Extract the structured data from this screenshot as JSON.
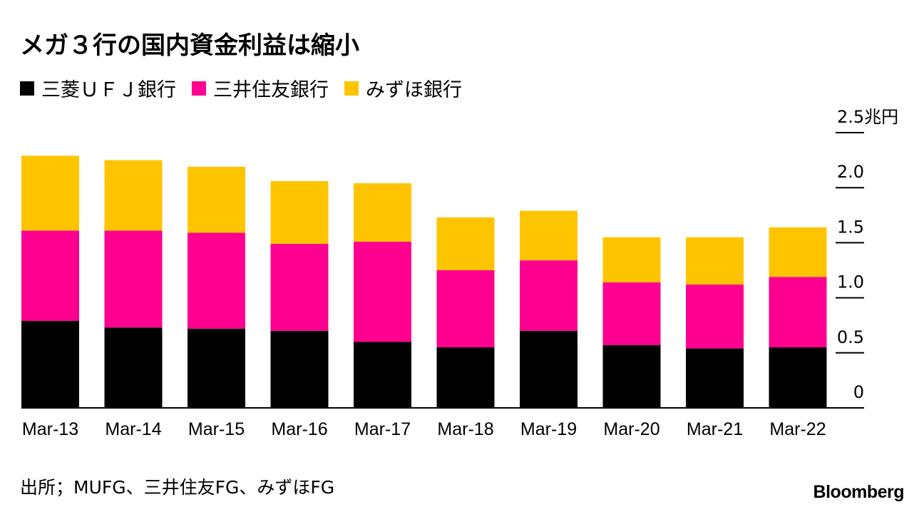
{
  "title": "メガ３行の国内資金利益は縮小",
  "legend": [
    {
      "label": "三菱ＵＦＪ銀行",
      "color": "#000000"
    },
    {
      "label": "三井住友銀行",
      "color": "#FF0090"
    },
    {
      "label": "みずほ銀行",
      "color": "#FFC400"
    }
  ],
  "source": "出所；MUFG、三井住友FG、みずほFG",
  "brand": "Bloomberg",
  "chart_data": {
    "type": "bar",
    "stacked": true,
    "categories": [
      "Mar-13",
      "Mar-14",
      "Mar-15",
      "Mar-16",
      "Mar-17",
      "Mar-18",
      "Mar-19",
      "Mar-20",
      "Mar-21",
      "Mar-22"
    ],
    "series": [
      {
        "name": "三菱ＵＦＪ銀行",
        "color": "#000000",
        "values": [
          0.79,
          0.73,
          0.72,
          0.7,
          0.6,
          0.55,
          0.7,
          0.57,
          0.54,
          0.55
        ]
      },
      {
        "name": "三井住友銀行",
        "color": "#FF0090",
        "values": [
          0.82,
          0.88,
          0.87,
          0.79,
          0.91,
          0.7,
          0.64,
          0.57,
          0.58,
          0.64
        ]
      },
      {
        "name": "みずほ銀行",
        "color": "#FFC400",
        "values": [
          0.68,
          0.64,
          0.6,
          0.57,
          0.53,
          0.48,
          0.45,
          0.41,
          0.43,
          0.45
        ]
      }
    ],
    "ylim": [
      0,
      2.5
    ],
    "yticks": [
      0,
      0.5,
      1.0,
      1.5,
      2.0,
      2.5
    ],
    "ytick_labels": [
      "0",
      "0.5",
      "1.0",
      "1.5",
      "2.0",
      "2.5兆円"
    ],
    "axis_side": "right",
    "grid": false,
    "legend_position": "top-left"
  }
}
